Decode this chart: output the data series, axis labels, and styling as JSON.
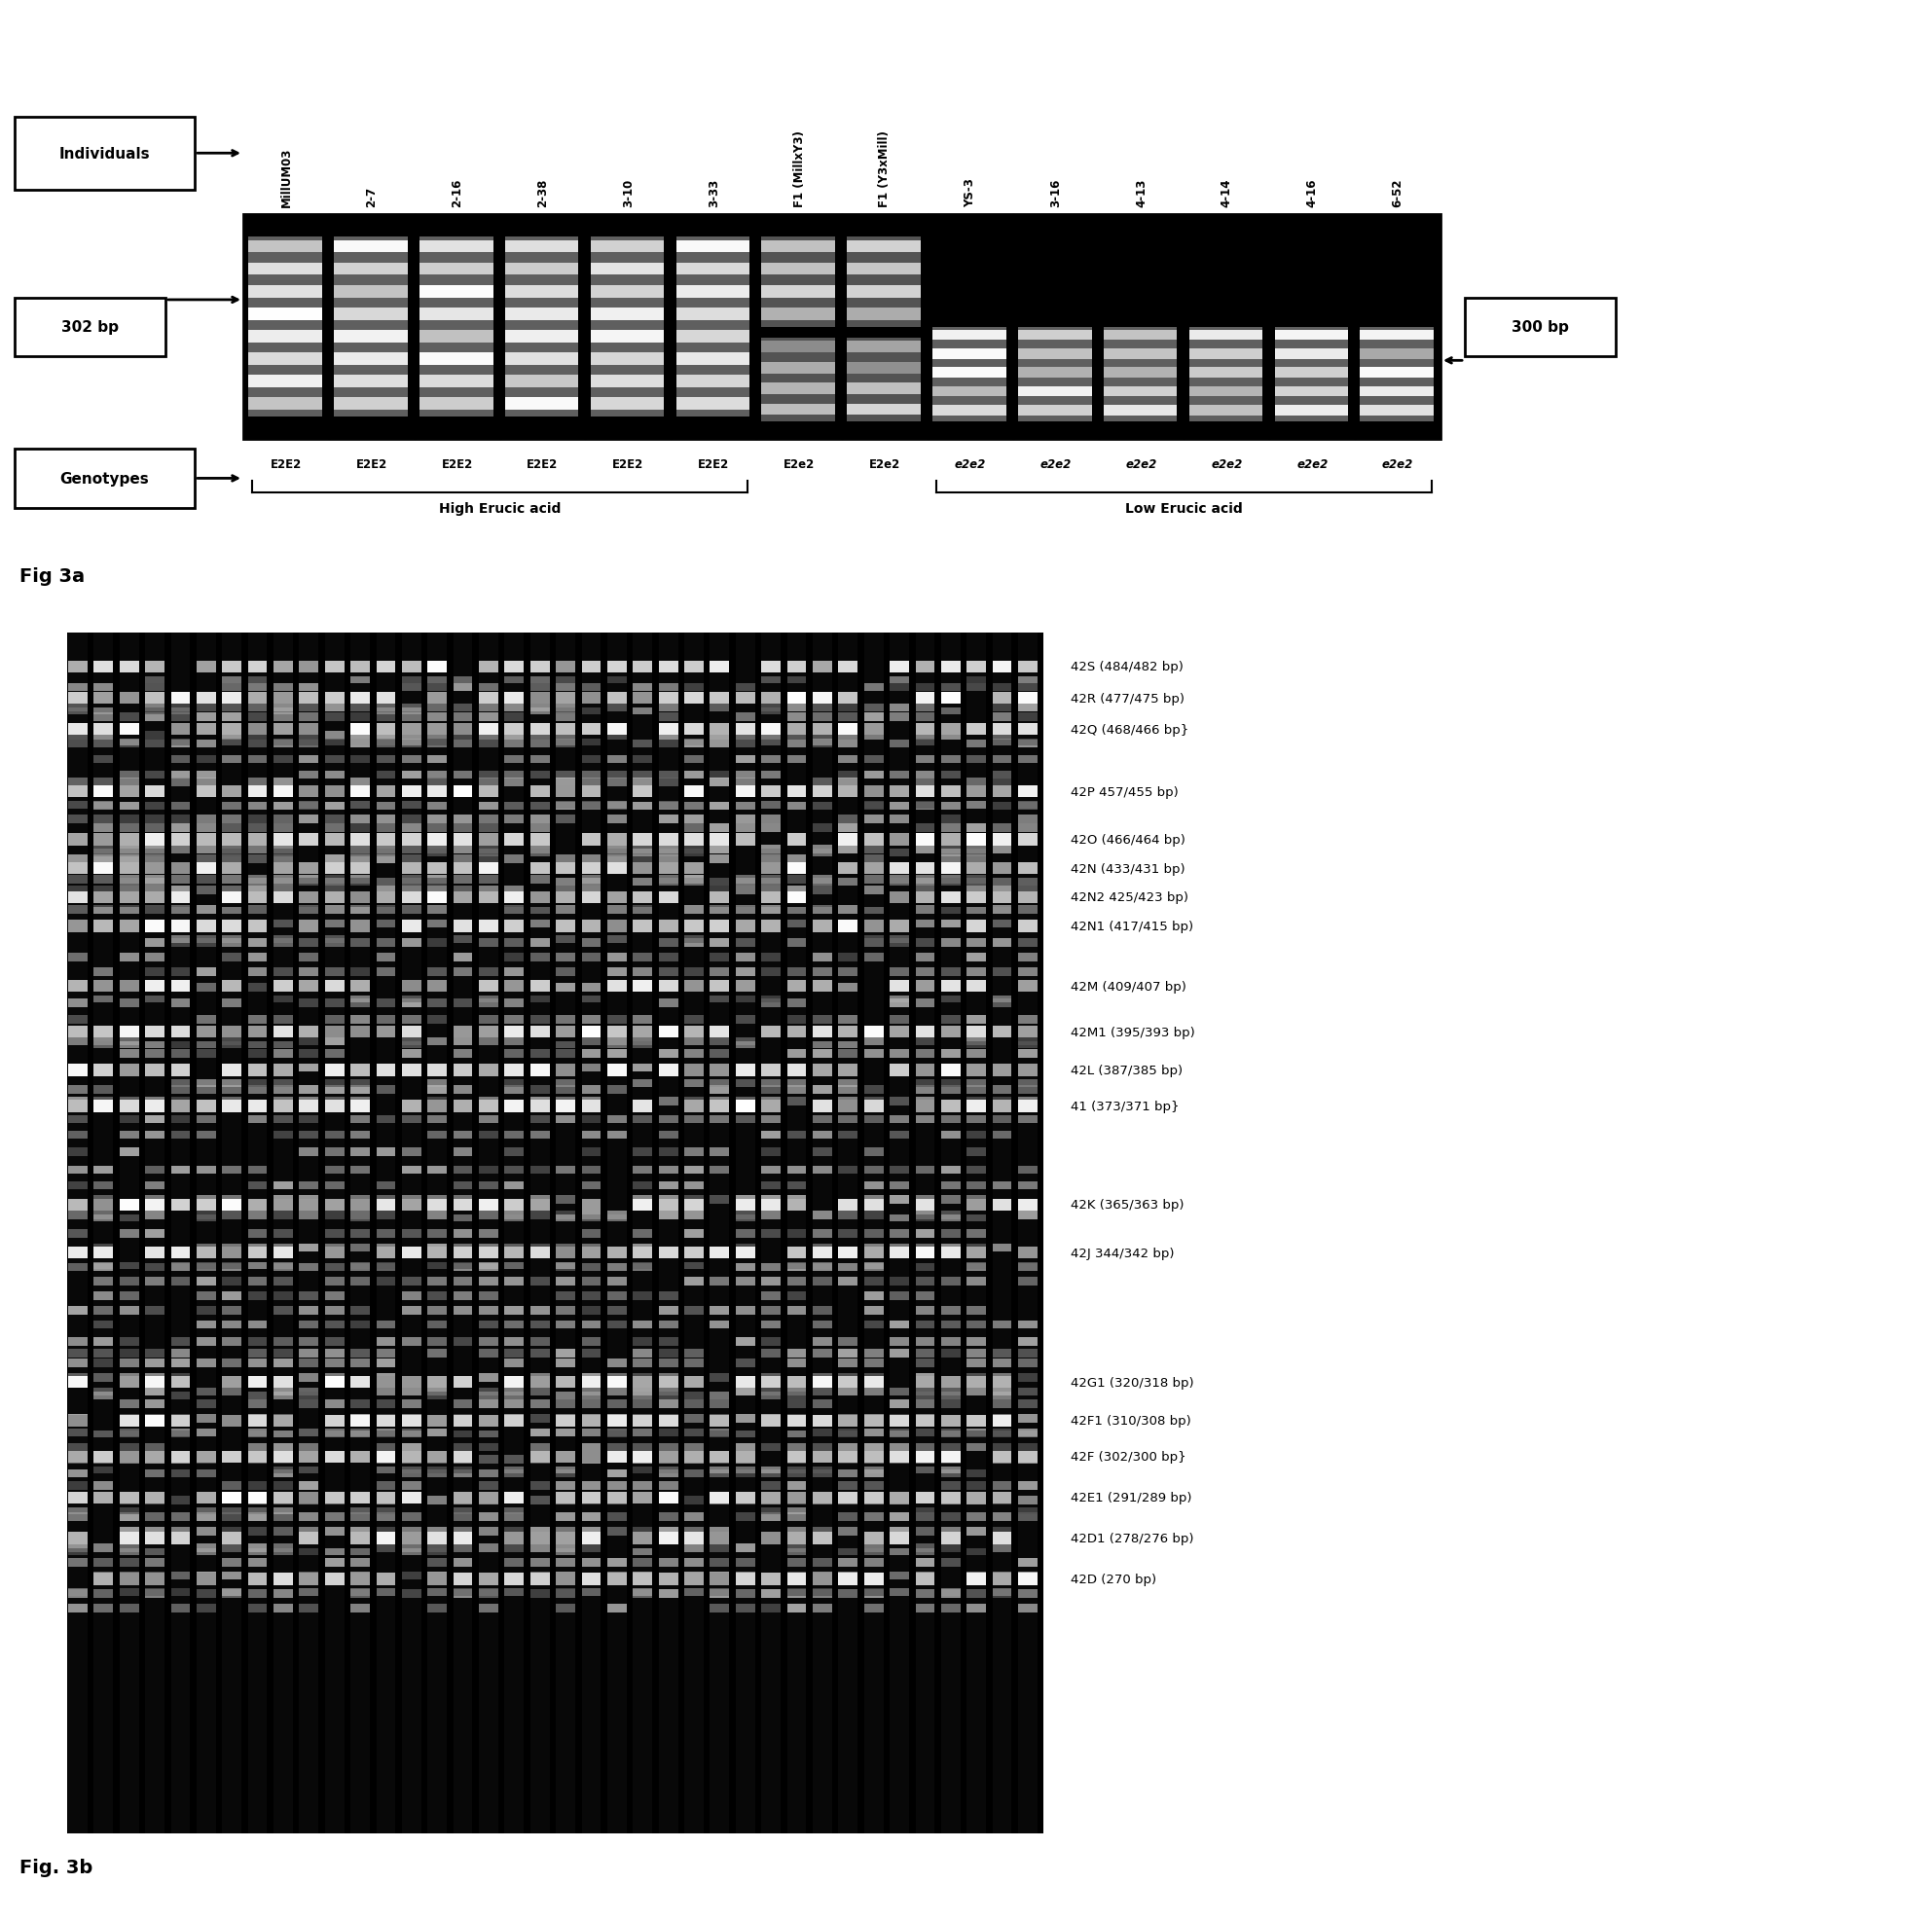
{
  "fig3a": {
    "lane_labels": [
      "MillUM03",
      "2-7",
      "2-16",
      "2-38",
      "3-10",
      "3-33",
      "F1 (MillxY3)",
      "F1 (Y3xMill)",
      "YS-3",
      "3-16",
      "4-13",
      "4-14",
      "4-16",
      "6-52"
    ],
    "genotypes": [
      "E2E2",
      "E2E2",
      "E2E2",
      "E2E2",
      "E2E2",
      "E2E2",
      "E2e2",
      "E2e2",
      "e2e2",
      "e2e2",
      "e2e2",
      "e2e2",
      "e2e2",
      "e2e2"
    ],
    "label_302bp": "302 bp",
    "label_300bp": "300 bp",
    "label_individuals": "Individuals",
    "label_genotypes": "Genotypes",
    "label_high": "High Erucic acid",
    "label_low": "Low Erucic acid",
    "fig_label": "Fig 3a"
  },
  "fig3b": {
    "band_labels_with_y": [
      [
        "42S (484/482 bp)",
        0.972
      ],
      [
        "42R (477/475 bp)",
        0.946
      ],
      [
        "42Q (468/466 bp}",
        0.92
      ],
      [
        "42P 457/455 bp)",
        0.868
      ],
      [
        "42O (466/464 bp)",
        0.828
      ],
      [
        "42N (433/431 bp)",
        0.804
      ],
      [
        "42N2 425/423 bp)",
        0.78
      ],
      [
        "42N1 (417/415 bp)",
        0.756
      ],
      [
        "42M (409/407 bp)",
        0.706
      ],
      [
        "42M1 (395/393 bp)",
        0.668
      ],
      [
        "42L (387/385 bp)",
        0.636
      ],
      [
        "41 (373/371 bp}",
        0.606
      ],
      [
        "42K (365/363 bp)",
        0.524
      ],
      [
        "42J 344/342 bp)",
        0.484
      ],
      [
        "42G1 (320/318 bp)",
        0.376
      ],
      [
        "42F1 (310/308 bp)",
        0.344
      ],
      [
        "42F (302/300 bp}",
        0.314
      ],
      [
        "42E1 (291/289 bp)",
        0.28
      ],
      [
        "42D1 (278/276 bp)",
        0.246
      ],
      [
        "42D (270 bp)",
        0.212
      ]
    ],
    "fig_label": "Fig. 3b"
  }
}
